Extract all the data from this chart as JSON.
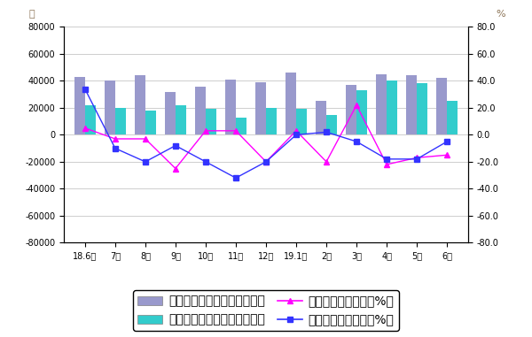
{
  "months": [
    "18.6月",
    "7月",
    "8月",
    "9月",
    "10月",
    "11月",
    "12月",
    "19.1月",
    "2月",
    "3月",
    "4月",
    "5月",
    "6月"
  ],
  "cutting_volume": [
    43000,
    40000,
    44000,
    32000,
    36000,
    41000,
    39000,
    46000,
    25000,
    37000,
    45000,
    44000,
    42000
  ],
  "forming_volume": [
    22000,
    20000,
    18000,
    22000,
    19000,
    13000,
    20000,
    19000,
    15000,
    33000,
    40000,
    38000,
    25000
  ],
  "cutting_yoy_pct": [
    5.0,
    -3.0,
    -3.0,
    -25.0,
    3.0,
    3.0,
    -20.0,
    3.0,
    -20.0,
    22.0,
    -22.0,
    -17.0,
    -15.0
  ],
  "forming_yoy_pct": [
    34.0,
    -10.0,
    -20.0,
    -8.0,
    -20.0,
    -32.0,
    -20.0,
    0.0,
    2.0,
    -5.0,
    -18.0,
    -18.0,
    -5.0
  ],
  "left_ylim": [
    -80000,
    80000
  ],
  "left_yticks": [
    -80000,
    -60000,
    -40000,
    -20000,
    0,
    20000,
    40000,
    60000,
    80000
  ],
  "right_ylim": [
    -80.0,
    80.0
  ],
  "right_yticks": [
    -80.0,
    -60.0,
    -40.0,
    -20.0,
    0.0,
    20.0,
    40.0,
    60.0,
    80.0
  ],
  "bar_color_cutting": "#9999cc",
  "bar_color_forming": "#33cccc",
  "line_color_cutting_yoy": "#ff00ff",
  "line_color_forming_yoy": "#3333ff",
  "left_ylabel": "台",
  "right_ylabel": "%",
  "legend_labels": [
    "金属切削机床月度产量（台）",
    "金属成形机床月度产量（台）",
    "金属切削机床同比（%）",
    "金属成形机床同比（%）"
  ],
  "background_color": "#ffffff",
  "grid_color": "#bbbbbb",
  "bar_width": 0.35,
  "figsize": [
    6.0,
    3.81
  ],
  "dpi": 100
}
